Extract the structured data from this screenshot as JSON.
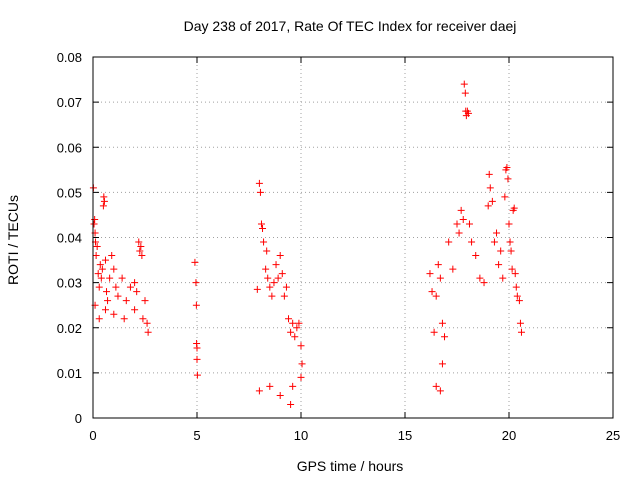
{
  "chart_data": {
    "type": "scatter",
    "title": "Day 238 of 2017, Rate Of TEC Index for receiver daej",
    "xlabel": "GPS time / hours",
    "ylabel": "ROTI / TECUs",
    "xlim": [
      0,
      25
    ],
    "ylim": [
      0,
      0.08
    ],
    "x_ticks": [
      "0",
      "5",
      "10",
      "15",
      "20",
      "25"
    ],
    "y_ticks": [
      "0",
      "0.01",
      "0.02",
      "0.03",
      "0.04",
      "0.05",
      "0.06",
      "0.07",
      "0.08"
    ],
    "x_tick_values": [
      0,
      5,
      10,
      15,
      20,
      25
    ],
    "y_tick_values": [
      0,
      0.01,
      0.02,
      0.03,
      0.04,
      0.05,
      0.06,
      0.07,
      0.08
    ],
    "grid": true,
    "marker": "+",
    "color": "#ff0000",
    "series": [
      {
        "points": [
          [
            0.02,
            0.051
          ],
          [
            0.05,
            0.043
          ],
          [
            0.08,
            0.044
          ],
          [
            0.1,
            0.041
          ],
          [
            0.12,
            0.039
          ],
          [
            0.15,
            0.036
          ],
          [
            0.2,
            0.038
          ],
          [
            0.25,
            0.032
          ],
          [
            0.3,
            0.029
          ],
          [
            0.35,
            0.034
          ],
          [
            0.4,
            0.031
          ],
          [
            0.45,
            0.033
          ],
          [
            0.5,
            0.047
          ],
          [
            0.52,
            0.049
          ],
          [
            0.55,
            0.048
          ],
          [
            0.6,
            0.035
          ],
          [
            0.65,
            0.028
          ],
          [
            0.7,
            0.026
          ],
          [
            0.8,
            0.031
          ],
          [
            0.9,
            0.036
          ],
          [
            1.0,
            0.033
          ],
          [
            1.1,
            0.029
          ],
          [
            1.2,
            0.027
          ],
          [
            1.4,
            0.031
          ],
          [
            1.6,
            0.026
          ],
          [
            1.8,
            0.029
          ],
          [
            2.0,
            0.03
          ],
          [
            2.1,
            0.028
          ],
          [
            2.2,
            0.039
          ],
          [
            2.25,
            0.037
          ],
          [
            2.3,
            0.038
          ],
          [
            2.35,
            0.036
          ],
          [
            2.4,
            0.022
          ],
          [
            2.5,
            0.026
          ],
          [
            2.6,
            0.021
          ],
          [
            2.65,
            0.019
          ],
          [
            0.1,
            0.025
          ],
          [
            0.3,
            0.022
          ],
          [
            0.6,
            0.024
          ],
          [
            1.0,
            0.023
          ],
          [
            1.5,
            0.022
          ],
          [
            2.0,
            0.024
          ],
          [
            4.9,
            0.0345
          ],
          [
            4.95,
            0.03
          ],
          [
            4.97,
            0.025
          ],
          [
            4.98,
            0.0165
          ],
          [
            5.0,
            0.0155
          ],
          [
            5.0,
            0.013
          ],
          [
            5.02,
            0.0095
          ],
          [
            7.9,
            0.0285
          ],
          [
            8.0,
            0.052
          ],
          [
            8.05,
            0.05
          ],
          [
            8.1,
            0.043
          ],
          [
            8.15,
            0.042
          ],
          [
            8.2,
            0.039
          ],
          [
            8.3,
            0.033
          ],
          [
            8.35,
            0.037
          ],
          [
            8.4,
            0.031
          ],
          [
            8.5,
            0.029
          ],
          [
            8.6,
            0.027
          ],
          [
            8.7,
            0.03
          ],
          [
            8.8,
            0.034
          ],
          [
            8.9,
            0.031
          ],
          [
            9.0,
            0.036
          ],
          [
            9.1,
            0.032
          ],
          [
            9.2,
            0.027
          ],
          [
            9.3,
            0.029
          ],
          [
            9.4,
            0.022
          ],
          [
            9.5,
            0.019
          ],
          [
            9.6,
            0.021
          ],
          [
            9.7,
            0.018
          ],
          [
            9.8,
            0.02
          ],
          [
            9.9,
            0.021
          ],
          [
            10.0,
            0.016
          ],
          [
            10.05,
            0.012
          ],
          [
            8.0,
            0.006
          ],
          [
            8.5,
            0.007
          ],
          [
            9.0,
            0.005
          ],
          [
            9.5,
            0.003
          ],
          [
            9.6,
            0.007
          ],
          [
            10.0,
            0.009
          ],
          [
            16.2,
            0.032
          ],
          [
            16.3,
            0.028
          ],
          [
            16.4,
            0.019
          ],
          [
            16.5,
            0.027
          ],
          [
            16.6,
            0.034
          ],
          [
            16.7,
            0.031
          ],
          [
            16.8,
            0.021
          ],
          [
            16.9,
            0.018
          ],
          [
            16.5,
            0.007
          ],
          [
            16.7,
            0.006
          ],
          [
            16.8,
            0.012
          ],
          [
            17.1,
            0.039
          ],
          [
            17.3,
            0.033
          ],
          [
            17.5,
            0.043
          ],
          [
            17.6,
            0.041
          ],
          [
            17.7,
            0.046
          ],
          [
            17.8,
            0.044
          ],
          [
            17.85,
            0.074
          ],
          [
            17.9,
            0.072
          ],
          [
            17.92,
            0.068
          ],
          [
            17.95,
            0.067
          ],
          [
            18.0,
            0.068
          ],
          [
            18.05,
            0.0675
          ],
          [
            18.1,
            0.043
          ],
          [
            18.2,
            0.039
          ],
          [
            18.4,
            0.036
          ],
          [
            18.6,
            0.031
          ],
          [
            18.8,
            0.03
          ],
          [
            19.0,
            0.047
          ],
          [
            19.05,
            0.054
          ],
          [
            19.1,
            0.051
          ],
          [
            19.2,
            0.048
          ],
          [
            19.3,
            0.039
          ],
          [
            19.4,
            0.041
          ],
          [
            19.5,
            0.034
          ],
          [
            19.6,
            0.037
          ],
          [
            19.7,
            0.031
          ],
          [
            19.8,
            0.049
          ],
          [
            19.85,
            0.055
          ],
          [
            19.9,
            0.0555
          ],
          [
            19.95,
            0.053
          ],
          [
            20.0,
            0.043
          ],
          [
            20.05,
            0.039
          ],
          [
            20.1,
            0.037
          ],
          [
            20.15,
            0.033
          ],
          [
            20.2,
            0.046
          ],
          [
            20.25,
            0.0465
          ],
          [
            20.3,
            0.032
          ],
          [
            20.35,
            0.029
          ],
          [
            20.4,
            0.027
          ],
          [
            20.5,
            0.026
          ],
          [
            20.55,
            0.021
          ],
          [
            20.6,
            0.019
          ]
        ]
      }
    ]
  }
}
